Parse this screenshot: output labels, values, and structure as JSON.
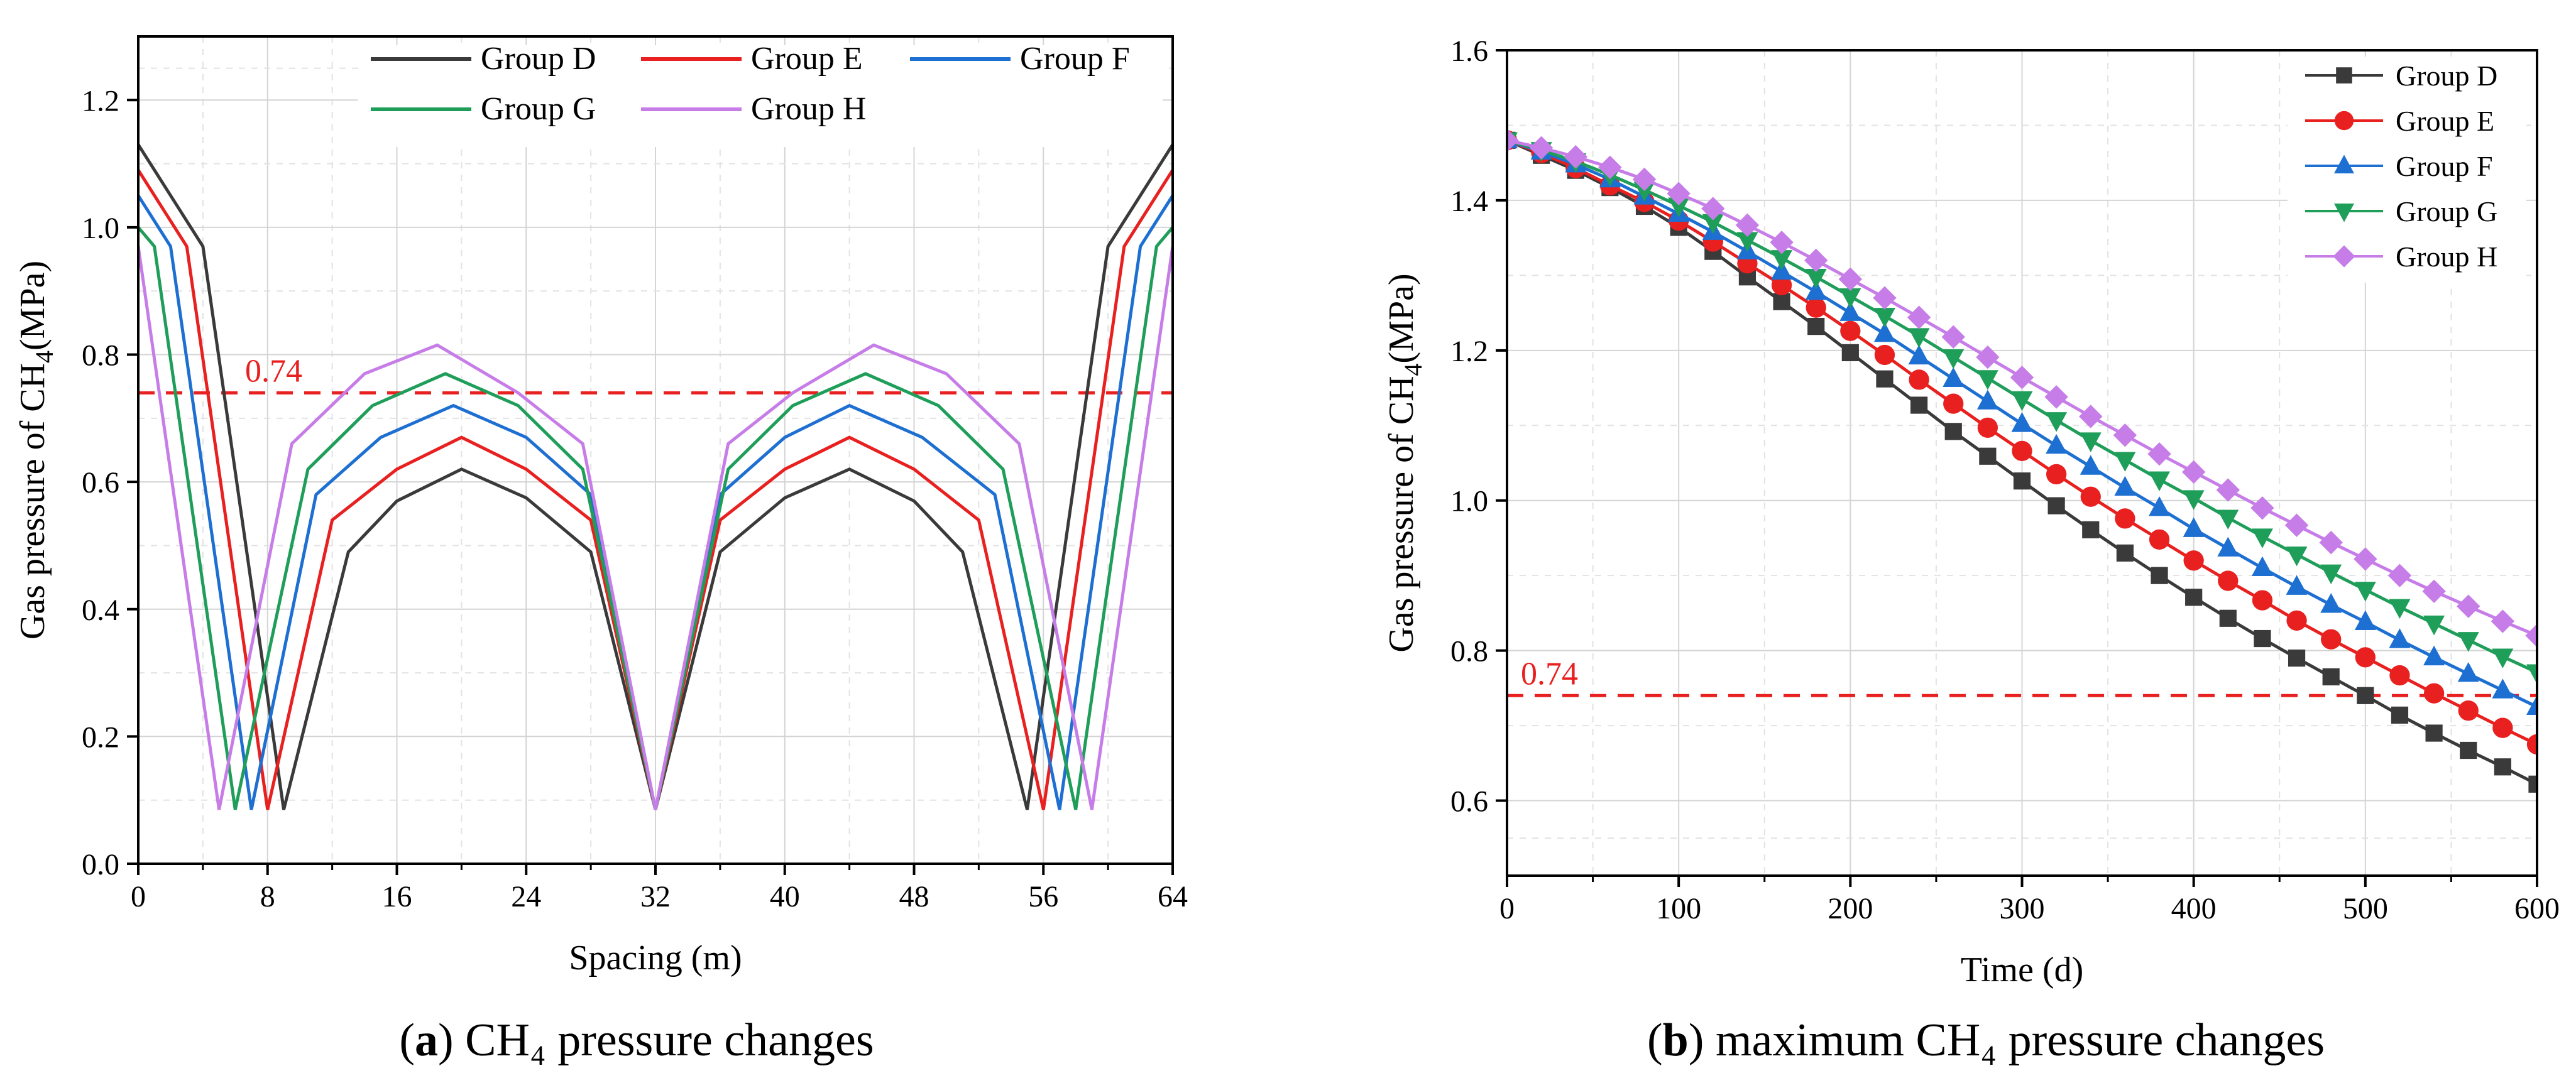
{
  "chart_data": [
    {
      "id": "a",
      "type": "line",
      "caption_label": "a",
      "caption_text": " CH₄ pressure changes",
      "xlabel": "Spacing (m)",
      "ylabel_main": "Gas pressure of CH",
      "ylabel_sub": "4",
      "ylabel_tail": "(MPa)",
      "xlim": [
        0,
        64
      ],
      "ylim": [
        0,
        1.3
      ],
      "xticks": [
        0,
        8,
        16,
        24,
        32,
        40,
        48,
        56,
        64
      ],
      "xtick_labels": [
        "0",
        "8",
        "16",
        "24",
        "32",
        "40",
        "48",
        "56",
        "64"
      ],
      "yticks": [
        0,
        0.2,
        0.4,
        0.6,
        0.8,
        1.0,
        1.2
      ],
      "ytick_labels": [
        "0.0",
        "0.2",
        "0.4",
        "0.6",
        "0.8",
        "1.0",
        "1.2"
      ],
      "threshold": {
        "value": 0.74,
        "label": "0.74",
        "color": "#e8201f"
      },
      "grid": true,
      "legend_position": "top-right",
      "series": [
        {
          "name": "Group D",
          "color": "#3a3a3a",
          "x": [
            0,
            4,
            9,
            13,
            16,
            20,
            24,
            28,
            32,
            36,
            40,
            44,
            48,
            51,
            55,
            60,
            64
          ],
          "y": [
            1.13,
            0.97,
            0.085,
            0.49,
            0.57,
            0.62,
            0.575,
            0.49,
            0.085,
            0.49,
            0.575,
            0.62,
            0.57,
            0.49,
            0.085,
            0.97,
            1.13
          ]
        },
        {
          "name": "Group E",
          "color": "#e8201f",
          "x": [
            0,
            3,
            8,
            12,
            16,
            20,
            24,
            28,
            32,
            36,
            40,
            44,
            48,
            52,
            56,
            61,
            64
          ],
          "y": [
            1.09,
            0.97,
            0.085,
            0.54,
            0.62,
            0.67,
            0.62,
            0.54,
            0.085,
            0.54,
            0.62,
            0.67,
            0.62,
            0.54,
            0.085,
            0.97,
            1.09
          ]
        },
        {
          "name": "Group F",
          "color": "#1d6fd1",
          "x": [
            0,
            2,
            7,
            11,
            15,
            19.5,
            24,
            28,
            32,
            36,
            40,
            44,
            48.5,
            53,
            57,
            62,
            64
          ],
          "y": [
            1.05,
            0.97,
            0.085,
            0.58,
            0.67,
            0.72,
            0.67,
            0.58,
            0.085,
            0.58,
            0.67,
            0.72,
            0.67,
            0.58,
            0.085,
            0.97,
            1.05
          ]
        },
        {
          "name": "Group G",
          "color": "#1f9e5a",
          "x": [
            0,
            1,
            6,
            10.5,
            14.5,
            19,
            23.5,
            27.5,
            32,
            36.5,
            40.5,
            45,
            49.5,
            53.5,
            58,
            63,
            64
          ],
          "y": [
            1.0,
            0.97,
            0.085,
            0.62,
            0.72,
            0.77,
            0.72,
            0.62,
            0.085,
            0.62,
            0.72,
            0.77,
            0.72,
            0.62,
            0.085,
            0.97,
            1.0
          ]
        },
        {
          "name": "Group H",
          "color": "#c77de8",
          "x": [
            0,
            5,
            9.5,
            14,
            18.5,
            23.5,
            27.5,
            32,
            36.5,
            40.5,
            45.5,
            50,
            54.5,
            59,
            64
          ],
          "y": [
            0.97,
            0.085,
            0.66,
            0.77,
            0.815,
            0.74,
            0.66,
            0.085,
            0.66,
            0.74,
            0.815,
            0.77,
            0.66,
            0.085,
            0.97
          ]
        }
      ]
    },
    {
      "id": "b",
      "type": "line",
      "caption_label": "b",
      "caption_text": " maximum CH₄ pressure changes",
      "xlabel": "Time (d)",
      "ylabel_main": "Gas pressure of CH",
      "ylabel_sub": "4",
      "ylabel_tail": "(MPa)",
      "xlim": [
        0,
        600
      ],
      "ylim": [
        0.5,
        1.6
      ],
      "xticks": [
        0,
        100,
        200,
        300,
        400,
        500,
        600
      ],
      "xtick_labels": [
        "0",
        "100",
        "200",
        "300",
        "400",
        "500",
        "600"
      ],
      "yticks": [
        0.6,
        0.8,
        1.0,
        1.2,
        1.4,
        1.6
      ],
      "ytick_labels": [
        "0.6",
        "0.8",
        "1.0",
        "1.2",
        "1.4",
        "1.6"
      ],
      "threshold": {
        "value": 0.74,
        "label": "0.74",
        "color": "#e8201f"
      },
      "grid": true,
      "legend_position": "top-right",
      "x": [
        0,
        20,
        40,
        60,
        80,
        100,
        120,
        140,
        160,
        180,
        200,
        220,
        240,
        260,
        280,
        300,
        320,
        340,
        360,
        380,
        400,
        420,
        440,
        460,
        480,
        500,
        520,
        540,
        560,
        580,
        600
      ],
      "series": [
        {
          "name": "Group D",
          "color": "#3a3a3a",
          "marker": "square",
          "values": [
            1.48,
            1.46,
            1.44,
            1.417,
            1.392,
            1.364,
            1.332,
            1.298,
            1.265,
            1.232,
            1.197,
            1.162,
            1.127,
            1.092,
            1.059,
            1.026,
            0.993,
            0.961,
            0.93,
            0.9,
            0.871,
            0.843,
            0.816,
            0.79,
            0.765,
            0.74,
            0.714,
            0.69,
            0.667,
            0.645,
            0.622
          ]
        },
        {
          "name": "Group E",
          "color": "#e8201f",
          "marker": "circle",
          "values": [
            1.48,
            1.463,
            1.443,
            1.42,
            1.398,
            1.373,
            1.345,
            1.316,
            1.287,
            1.257,
            1.226,
            1.194,
            1.161,
            1.129,
            1.097,
            1.066,
            1.035,
            1.005,
            0.976,
            0.948,
            0.92,
            0.893,
            0.867,
            0.84,
            0.815,
            0.791,
            0.767,
            0.743,
            0.72,
            0.697,
            0.675
          ]
        },
        {
          "name": "Group F",
          "color": "#1d6fd1",
          "marker": "triangle-up",
          "values": [
            1.48,
            1.465,
            1.448,
            1.428,
            1.405,
            1.382,
            1.358,
            1.332,
            1.305,
            1.278,
            1.25,
            1.222,
            1.192,
            1.162,
            1.132,
            1.102,
            1.073,
            1.045,
            1.017,
            0.99,
            0.962,
            0.936,
            0.91,
            0.885,
            0.861,
            0.838,
            0.814,
            0.791,
            0.769,
            0.747,
            0.725
          ]
        },
        {
          "name": "Group G",
          "color": "#1f9e5a",
          "marker": "triangle-down",
          "values": [
            1.48,
            1.467,
            1.452,
            1.434,
            1.414,
            1.393,
            1.371,
            1.347,
            1.323,
            1.298,
            1.272,
            1.246,
            1.219,
            1.191,
            1.163,
            1.135,
            1.107,
            1.08,
            1.054,
            1.028,
            1.003,
            0.977,
            0.952,
            0.928,
            0.904,
            0.881,
            0.858,
            0.836,
            0.814,
            0.792,
            0.771
          ]
        },
        {
          "name": "Group H",
          "color": "#c77de8",
          "marker": "diamond",
          "values": [
            1.48,
            1.47,
            1.458,
            1.444,
            1.428,
            1.409,
            1.389,
            1.367,
            1.344,
            1.32,
            1.295,
            1.27,
            1.244,
            1.218,
            1.191,
            1.164,
            1.138,
            1.112,
            1.087,
            1.062,
            1.038,
            1.014,
            0.99,
            0.967,
            0.944,
            0.922,
            0.9,
            0.879,
            0.859,
            0.839,
            0.82
          ]
        }
      ]
    }
  ]
}
